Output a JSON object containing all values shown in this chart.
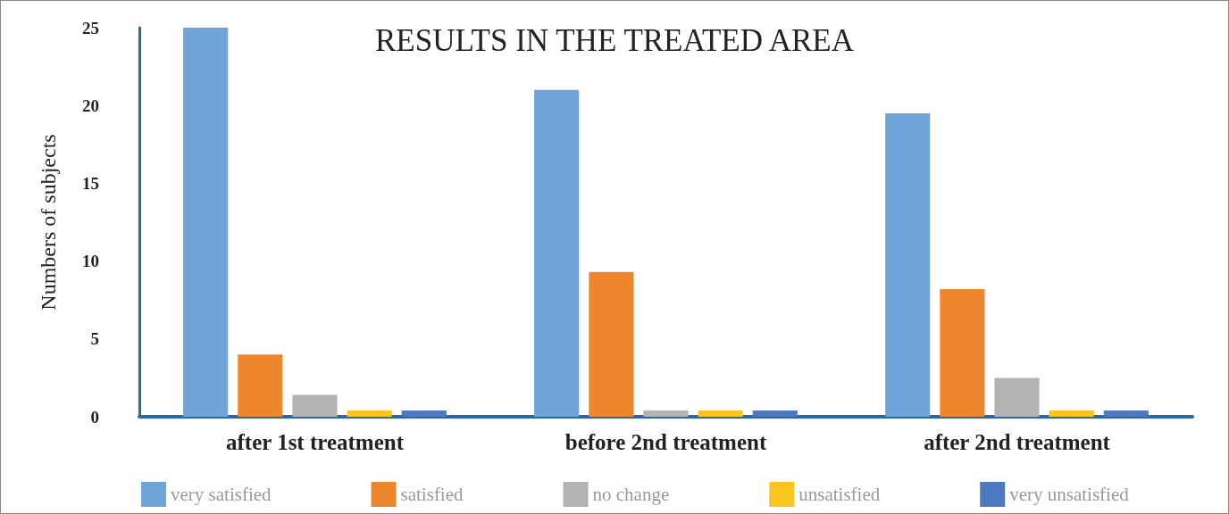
{
  "chart_data": {
    "type": "bar",
    "title": "RESULTS IN THE TREATED AREA",
    "ylabel": "Numbers of subjects",
    "categories": [
      "after 1st treatment",
      "before 2nd treatment",
      "after 2nd treatment"
    ],
    "series": [
      {
        "name": "very satisfied",
        "color": "#70a5d9",
        "values": [
          25,
          21,
          19.5
        ]
      },
      {
        "name": "satisfied",
        "color": "#ee862e",
        "values": [
          4,
          9.3,
          8.2
        ]
      },
      {
        "name": "no change",
        "color": "#b3b2b4",
        "values": [
          1.4,
          0.4,
          2.5
        ]
      },
      {
        "name": "unsatisfied",
        "color": "#fbc520",
        "values": [
          0.4,
          0.4,
          0.4
        ]
      },
      {
        "name": "very unsatisfied",
        "color": "#4e79bf",
        "values": [
          0.4,
          0.4,
          0.4
        ]
      }
    ],
    "ylim": [
      0,
      25
    ],
    "yticks": [
      0,
      5,
      10,
      15,
      20,
      25
    ],
    "grid": false,
    "legend": "bottom"
  }
}
